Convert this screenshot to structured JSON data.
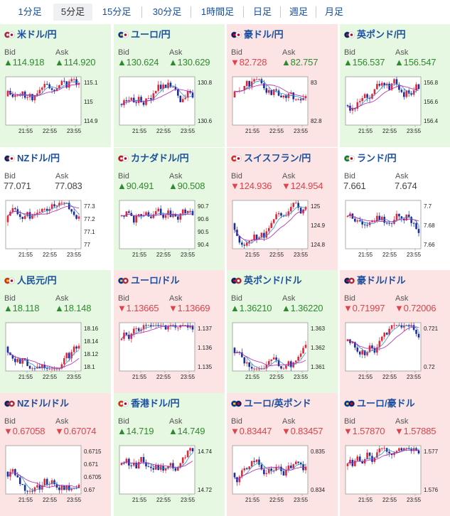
{
  "tabs": [
    {
      "label": "1分足",
      "active": false
    },
    {
      "label": "5分足",
      "active": true
    },
    {
      "label": "15分足",
      "active": false
    },
    {
      "label": "30分足",
      "active": false
    },
    {
      "label": "1時間足",
      "active": false
    },
    {
      "label": "日足",
      "active": false
    },
    {
      "label": "週足",
      "active": false
    },
    {
      "label": "月足",
      "active": false
    }
  ],
  "labels": {
    "bid": "Bid",
    "ask": "Ask"
  },
  "colors": {
    "up": "#e6f8e1",
    "down": "#fde4e4",
    "rise": "#2e8a2e",
    "fall": "#e0414a",
    "link": "#1a4fa0"
  },
  "cards": [
    {
      "name": "米ドル/円",
      "flag": "us-jp-flag-icon",
      "bg": "up",
      "bid": "▲114.918",
      "ask": "▲114.920",
      "bid_dir": "up",
      "ask_dir": "up",
      "yticks": [
        "115.1",
        "115",
        "114.9"
      ],
      "xticks": [
        "21:55",
        "22:55",
        "23:55"
      ],
      "ylim": [
        114.83,
        115.16
      ]
    },
    {
      "name": "ユーロ/円",
      "flag": "eu-jp-flag-icon",
      "bg": "up",
      "bid": "▲130.624",
      "ask": "▲130.629",
      "bid_dir": "up",
      "ask_dir": "up",
      "yticks": [
        "130.8",
        "130.6"
      ],
      "xticks": [
        "21:55",
        "22:55",
        "23:55"
      ],
      "ylim": [
        130.47,
        130.92
      ]
    },
    {
      "name": "豪ドル/円",
      "flag": "au-jp-flag-icon",
      "bg": "down",
      "bid": "▼82.728",
      "ask": "▲82.757",
      "bid_dir": "down",
      "ask_dir": "up",
      "yticks": [
        "83",
        "82.8"
      ],
      "xticks": [
        "21:55",
        "22:55",
        "23:55"
      ],
      "ylim": [
        82.67,
        83.04
      ]
    },
    {
      "name": "英ポンド/円",
      "flag": "gb-jp-flag-icon",
      "bg": "up",
      "bid": "▲156.537",
      "ask": "▲156.547",
      "bid_dir": "up",
      "ask_dir": "up",
      "yticks": [
        "156.8",
        "156.6",
        "156.4"
      ],
      "xticks": [
        "21:55",
        "22:55",
        "23:55"
      ],
      "ylim": [
        156.37,
        156.9
      ]
    },
    {
      "name": "NZドル/円",
      "flag": "nz-jp-flag-icon",
      "bg": "none",
      "bid": "77.071",
      "ask": "77.083",
      "bid_dir": "flat",
      "ask_dir": "flat",
      "yticks": [
        "77.3",
        "77.2",
        "77.1",
        "77"
      ],
      "xticks": [
        "21:55",
        "22:55",
        "23:55"
      ],
      "ylim": [
        76.98,
        77.34
      ]
    },
    {
      "name": "カナダドル/円",
      "flag": "ca-jp-flag-icon",
      "bg": "up",
      "bid": "▲90.491",
      "ask": "▲90.508",
      "bid_dir": "up",
      "ask_dir": "up",
      "yticks": [
        "90.7",
        "90.6",
        "90.5",
        "90.4"
      ],
      "xticks": [
        "21:55",
        "22:55",
        "23:55"
      ],
      "ylim": [
        90.35,
        90.73
      ]
    },
    {
      "name": "スイスフラン/円",
      "flag": "ch-jp-flag-icon",
      "bg": "down",
      "bid": "▼124.936",
      "ask": "▼124.954",
      "bid_dir": "down",
      "ask_dir": "down",
      "yticks": [
        "125",
        "124.9",
        "124.8"
      ],
      "xticks": [
        "21:55",
        "22:55",
        "23:55"
      ],
      "ylim": [
        124.76,
        125.07
      ]
    },
    {
      "name": "ランド/円",
      "flag": "za-jp-flag-icon",
      "bg": "none",
      "bid": "7.661",
      "ask": "7.674",
      "bid_dir": "flat",
      "ask_dir": "flat",
      "yticks": [
        "7.7",
        "7.68",
        "7.66"
      ],
      "xticks": [
        "21:55",
        "22:55",
        "23:55"
      ],
      "ylim": [
        7.65,
        7.705
      ]
    },
    {
      "name": "人民元/円",
      "flag": "cn-jp-flag-icon",
      "bg": "up",
      "bid": "▲18.118",
      "ask": "▲18.148",
      "bid_dir": "up",
      "ask_dir": "up",
      "yticks": [
        "18.16",
        "18.14",
        "18.12",
        "18.1"
      ],
      "xticks": [
        "21:55",
        "22:55",
        "23:55"
      ],
      "ylim": [
        18.09,
        18.167
      ]
    },
    {
      "name": "ユーロ/ドル",
      "flag": "eu-us-flag-icon",
      "bg": "down",
      "bid": "▼1.13665",
      "ask": "▼1.13669",
      "bid_dir": "down",
      "ask_dir": "down",
      "yticks": [
        "1.137",
        "1.136",
        "1.135"
      ],
      "xticks": [
        "21:55",
        "22:55",
        "23:55"
      ],
      "ylim": [
        1.1348,
        1.1379
      ]
    },
    {
      "name": "英ポンド/ドル",
      "flag": "gb-us-flag-icon",
      "bg": "up",
      "bid": "▲1.36210",
      "ask": "▲1.36220",
      "bid_dir": "up",
      "ask_dir": "up",
      "yticks": [
        "1.363",
        "1.362",
        "1.361"
      ],
      "xticks": [
        "21:55",
        "22:55",
        "23:55"
      ],
      "ylim": [
        1.3606,
        1.3636
      ]
    },
    {
      "name": "豪ドル/ドル",
      "flag": "au-us-flag-icon",
      "bg": "down",
      "bid": "▼0.71997",
      "ask": "▼0.72006",
      "bid_dir": "down",
      "ask_dir": "down",
      "yticks": [
        "0.721",
        "0.72"
      ],
      "xticks": [
        "21:55",
        "22:55",
        "23:55"
      ],
      "ylim": [
        0.7193,
        0.7217
      ]
    },
    {
      "name": "NZドル/ドル",
      "flag": "nz-us-flag-icon",
      "bg": "down",
      "bid": "▼0.67058",
      "ask": "▼0.67074",
      "bid_dir": "down",
      "ask_dir": "down",
      "yticks": [
        "0.6715",
        "0.671",
        "0.6705",
        "0.67"
      ],
      "xticks": [
        "21:55",
        "22:55",
        "23:55"
      ],
      "ylim": [
        0.6697,
        0.6717
      ]
    },
    {
      "name": "香港ドル/円",
      "flag": "hk-jp-flag-icon",
      "bg": "up",
      "bid": "▲14.719",
      "ask": "▲14.749",
      "bid_dir": "up",
      "ask_dir": "up",
      "yticks": [
        "14.74",
        "14.72"
      ],
      "xticks": [
        "21:55",
        "22:55",
        "23:55"
      ],
      "ylim": [
        14.71,
        14.75
      ]
    },
    {
      "name": "ユーロ/英ポンド",
      "flag": "eu-gb-flag-icon",
      "bg": "down",
      "bid": "▼0.83447",
      "ask": "▼0.83457",
      "bid_dir": "down",
      "ask_dir": "down",
      "yticks": [
        "0.835",
        "0.834"
      ],
      "xticks": [
        "21:55",
        "22:55",
        "23:55"
      ],
      "ylim": [
        0.8336,
        0.8356
      ]
    },
    {
      "name": "ユーロ/豪ドル",
      "flag": "eu-au-flag-icon",
      "bg": "down",
      "bid": "▼1.57870",
      "ask": "▼1.57885",
      "bid_dir": "down",
      "ask_dir": "down",
      "yticks": [
        "1.577",
        "1.576"
      ],
      "xticks": [
        "21:55",
        "22:55",
        "23:55"
      ],
      "ylim": [
        1.5752,
        1.5792
      ]
    }
  ]
}
